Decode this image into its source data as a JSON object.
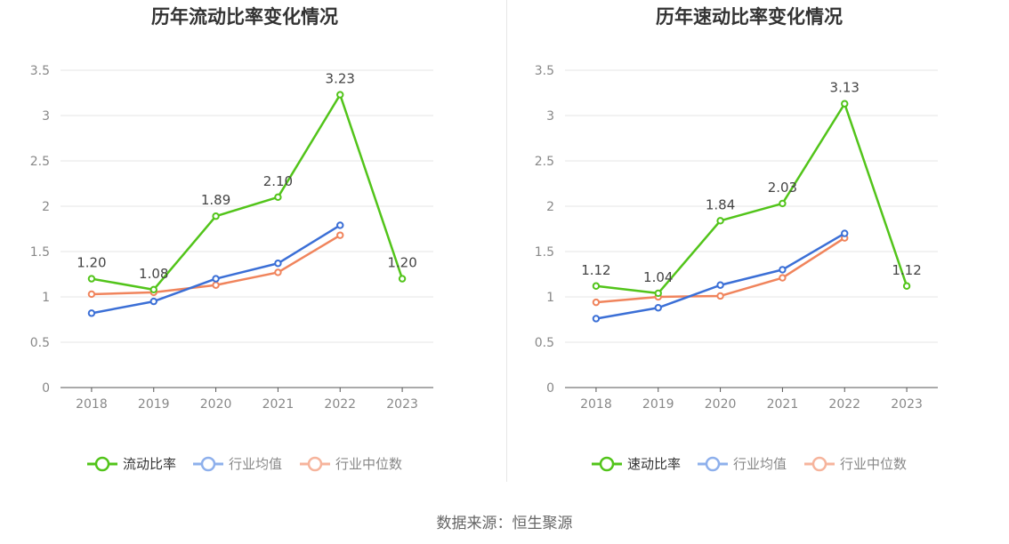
{
  "colors": {
    "series_main": "#52c41a",
    "series_avg": "#3b6fd6",
    "series_median": "#f0845c",
    "legend_avg": "#8eb0ec",
    "legend_median": "#f6b49c",
    "grid": "#e6e6e6",
    "axis": "#555555",
    "tick": "#888888",
    "title": "#333333"
  },
  "chart_data": [
    {
      "type": "line",
      "title": "历年流动比率变化情况",
      "categories": [
        "2018",
        "2019",
        "2020",
        "2021",
        "2022",
        "2023"
      ],
      "ylim": [
        0,
        3.5
      ],
      "yticks": [
        "0",
        "0.5",
        "1",
        "1.5",
        "2",
        "2.5",
        "3",
        "3.5"
      ],
      "grid": true,
      "legend_position": "bottom",
      "series": [
        {
          "name": "流动比率",
          "values": [
            1.2,
            1.08,
            1.89,
            2.1,
            3.23,
            1.2
          ],
          "labels": [
            "1.20",
            "1.08",
            "1.89",
            "2.10",
            "3.23",
            "1.20"
          ]
        },
        {
          "name": "行业均值",
          "values": [
            0.82,
            0.95,
            1.2,
            1.37,
            1.79,
            null
          ]
        },
        {
          "name": "行业中位数",
          "values": [
            1.03,
            1.05,
            1.13,
            1.27,
            1.68,
            null
          ]
        }
      ]
    },
    {
      "type": "line",
      "title": "历年速动比率变化情况",
      "categories": [
        "2018",
        "2019",
        "2020",
        "2021",
        "2022",
        "2023"
      ],
      "ylim": [
        0,
        3.5
      ],
      "yticks": [
        "0",
        "0.5",
        "1",
        "1.5",
        "2",
        "2.5",
        "3",
        "3.5"
      ],
      "grid": true,
      "legend_position": "bottom",
      "series": [
        {
          "name": "速动比率",
          "values": [
            1.12,
            1.04,
            1.84,
            2.03,
            3.13,
            1.12
          ],
          "labels": [
            "1.12",
            "1.04",
            "1.84",
            "2.03",
            "3.13",
            "1.12"
          ]
        },
        {
          "name": "行业均值",
          "values": [
            0.76,
            0.88,
            1.13,
            1.3,
            1.7,
            null
          ]
        },
        {
          "name": "行业中位数",
          "values": [
            0.94,
            1.0,
            1.01,
            1.21,
            1.65,
            null
          ]
        }
      ]
    }
  ],
  "footer": {
    "source": "数据来源：恒生聚源"
  }
}
